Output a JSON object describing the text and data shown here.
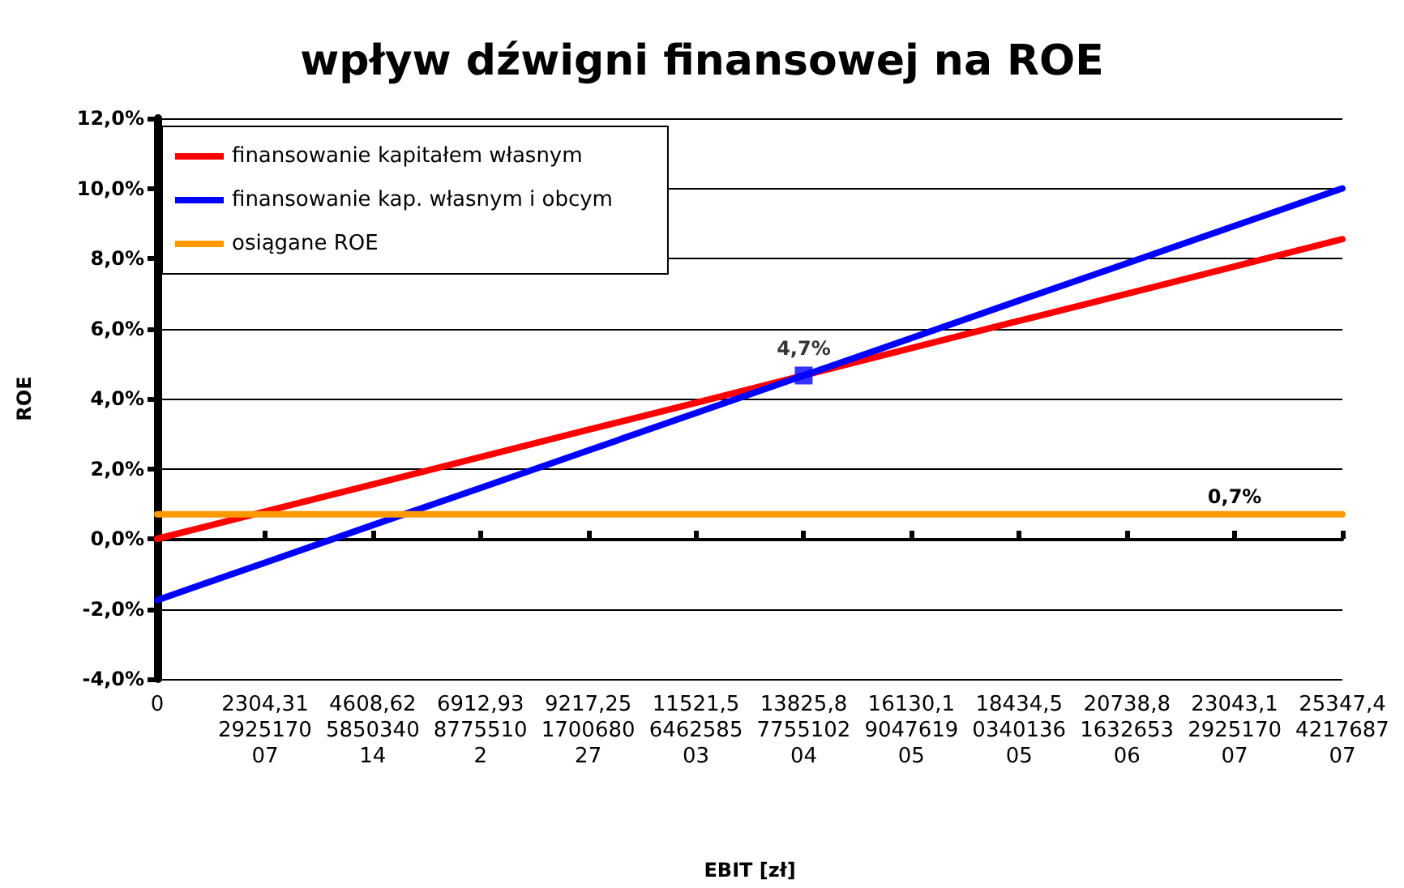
{
  "chart_data": {
    "type": "line",
    "title": "wpływ dźwigni finansowej na ROE",
    "xlabel": "EBIT [zł]",
    "ylabel": "ROE",
    "categories": [
      "0",
      "2304,31292517007",
      "4608,62585034014",
      "6912,9387755102",
      "9217,25170068027",
      "11521,5646258503",
      "13825,8775510204",
      "16130,1904761905",
      "18434,5034013605",
      "20738,8163265306",
      "23043,1292517007",
      "25347,4421768707"
    ],
    "series": [
      {
        "name": "finansowanie kapitałem własnym",
        "color": "#ff0000",
        "values": [
          0,
          0.78,
          1.55,
          2.33,
          3.11,
          3.88,
          4.66,
          5.44,
          6.22,
          6.99,
          7.77,
          8.55
        ]
      },
      {
        "name": "finansowanie kap. własnym i obcym",
        "color": "#0000ff",
        "values": [
          -1.75,
          -0.68,
          0.39,
          1.45,
          2.52,
          3.59,
          4.66,
          5.73,
          6.8,
          7.86,
          8.93,
          10.0
        ]
      },
      {
        "name": "osiągane ROE",
        "color": "#ff9900",
        "values": [
          0.7,
          0.7,
          0.7,
          0.7,
          0.7,
          0.7,
          0.7,
          0.7,
          0.7,
          0.7,
          0.7,
          0.7
        ],
        "value_labels": [
          null,
          null,
          null,
          null,
          null,
          null,
          null,
          null,
          null,
          null,
          "0,7%",
          null
        ]
      },
      {
        "type": "scatter",
        "color": "#0000ff",
        "marker": "square",
        "x": [
          "13825,8775510204"
        ],
        "values": [
          4.66
        ],
        "value_labels": [
          "4,7%"
        ]
      }
    ],
    "ylim": [
      -4,
      12
    ],
    "yticks": [
      {
        "value": -4,
        "label": "-4,0%"
      },
      {
        "value": -2,
        "label": "-2,0%"
      },
      {
        "value": 0,
        "label": "0,0%"
      },
      {
        "value": 2,
        "label": "2,0%"
      },
      {
        "value": 4,
        "label": "4,0%"
      },
      {
        "value": 6,
        "label": "6,0%"
      },
      {
        "value": 8,
        "label": "8,0%"
      },
      {
        "value": 10,
        "label": "10,0%"
      },
      {
        "value": 12,
        "label": "12,0%"
      }
    ],
    "grid": "y",
    "legend": "top left",
    "line_style": "solid"
  }
}
